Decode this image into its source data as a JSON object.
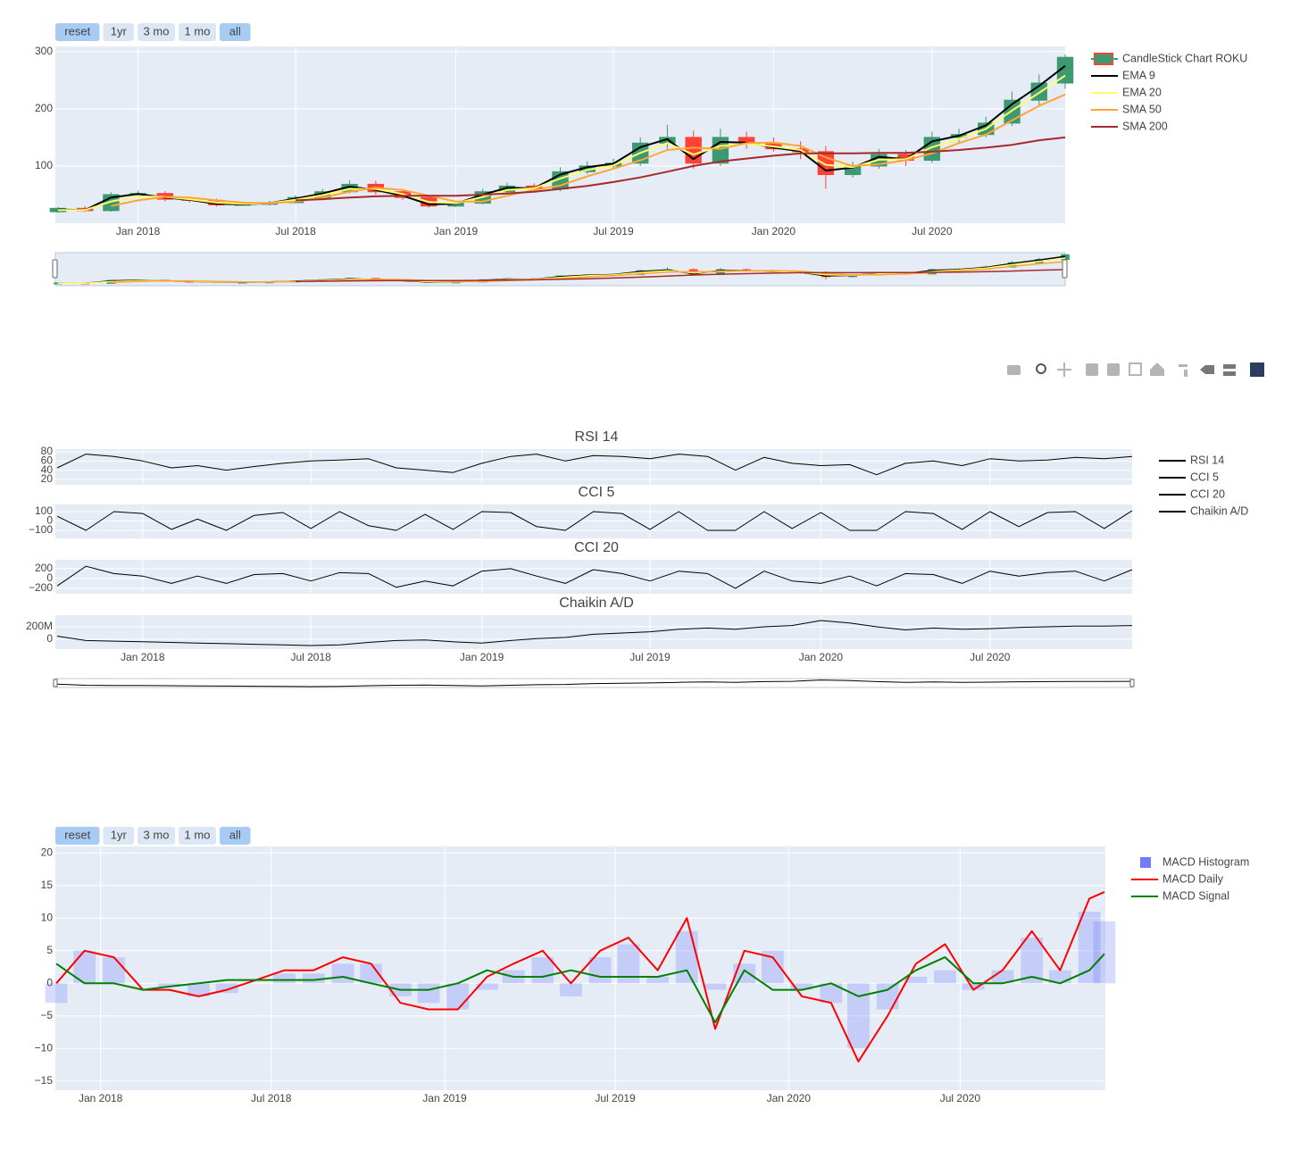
{
  "chart_data": [
    {
      "type": "candlestick",
      "range_buttons": [
        "reset",
        "1yr",
        "3 mo",
        "1 mo",
        "all"
      ],
      "x": [
        "2017-10-01",
        "2017-11-01",
        "2017-12-01",
        "2018-01-01",
        "2018-02-01",
        "2018-03-01",
        "2018-04-01",
        "2018-05-01",
        "2018-06-01",
        "2018-07-01",
        "2018-08-01",
        "2018-09-01",
        "2018-10-01",
        "2018-11-01",
        "2018-12-01",
        "2019-01-01",
        "2019-02-01",
        "2019-03-01",
        "2019-04-01",
        "2019-05-01",
        "2019-06-01",
        "2019-07-01",
        "2019-08-01",
        "2019-09-01",
        "2019-10-01",
        "2019-11-01",
        "2019-12-01",
        "2020-01-01",
        "2020-02-01",
        "2020-03-01",
        "2020-04-01",
        "2020-05-01",
        "2020-06-01",
        "2020-07-01",
        "2020-08-01",
        "2020-09-01",
        "2020-10-01",
        "2020-11-01",
        "2020-12-01"
      ],
      "candles": {
        "name": "CandleStick Chart ROKU",
        "increasing_color": "#3d9970",
        "decreasing_color": "#ff4136",
        "open": [
          20,
          26,
          22,
          50,
          52,
          42,
          40,
          32,
          33,
          36,
          45,
          55,
          68,
          55,
          45,
          30,
          35,
          55,
          65,
          60,
          90,
          100,
          105,
          140,
          150,
          105,
          150,
          140,
          130,
          125,
          85,
          100,
          120,
          110,
          150,
          155,
          175,
          215,
          245
        ],
        "high": [
          28,
          30,
          54,
          57,
          56,
          46,
          43,
          36,
          39,
          49,
          60,
          75,
          74,
          60,
          49,
          38,
          60,
          71,
          70,
          98,
          108,
          113,
          150,
          172,
          162,
          165,
          160,
          150,
          143,
          135,
          108,
          130,
          128,
          160,
          165,
          186,
          230,
          260,
          295
        ],
        "low": [
          18,
          20,
          20,
          46,
          38,
          36,
          29,
          30,
          31,
          34,
          42,
          52,
          50,
          41,
          27,
          28,
          33,
          52,
          55,
          56,
          86,
          95,
          100,
          130,
          95,
          100,
          130,
          125,
          112,
          60,
          80,
          95,
          100,
          105,
          140,
          150,
          170,
          205,
          235
        ],
        "close": [
          26,
          22,
          50,
          52,
          42,
          40,
          32,
          33,
          36,
          45,
          55,
          68,
          55,
          45,
          30,
          35,
          55,
          65,
          60,
          90,
          100,
          105,
          140,
          150,
          105,
          150,
          140,
          130,
          125,
          85,
          100,
          120,
          110,
          150,
          155,
          175,
          215,
          245,
          290
        ]
      },
      "series": [
        {
          "name": "EMA 9",
          "color": "#000000",
          "values": [
            24,
            23,
            45,
            51,
            45,
            41,
            34,
            33,
            35,
            43,
            52,
            64,
            58,
            48,
            33,
            34,
            50,
            62,
            61,
            85,
            98,
            104,
            133,
            147,
            112,
            142,
            141,
            132,
            126,
            92,
            97,
            116,
            112,
            143,
            153,
            171,
            208,
            240,
            275
          ]
        },
        {
          "name": "EMA 20",
          "color": "#ffff66",
          "values": [
            23,
            23,
            38,
            47,
            46,
            42,
            36,
            34,
            35,
            41,
            49,
            60,
            60,
            51,
            37,
            35,
            46,
            58,
            61,
            78,
            93,
            101,
            123,
            140,
            120,
            135,
            139,
            134,
            128,
            102,
            98,
            111,
            112,
            133,
            147,
            165,
            197,
            228,
            258
          ]
        },
        {
          "name": "SMA 50",
          "color": "#ffa537",
          "values": [
            null,
            null,
            30,
            40,
            46,
            45,
            40,
            36,
            35,
            38,
            45,
            55,
            62,
            58,
            48,
            38,
            38,
            48,
            58,
            66,
            82,
            95,
            110,
            128,
            132,
            130,
            140,
            141,
            135,
            115,
            100,
            103,
            110,
            122,
            140,
            155,
            180,
            205,
            225
          ]
        },
        {
          "name": "SMA 200",
          "color": "#a52a2a",
          "values": [
            null,
            null,
            null,
            null,
            null,
            null,
            null,
            null,
            null,
            40,
            42,
            45,
            47,
            48,
            48,
            48,
            50,
            52,
            55,
            60,
            65,
            72,
            80,
            90,
            100,
            108,
            113,
            118,
            122,
            122,
            122,
            123,
            123,
            125,
            128,
            132,
            137,
            145,
            150
          ]
        }
      ],
      "xlim": [
        "2017-09-28",
        "2020-12-01"
      ],
      "xticks": [
        {
          "value": "2018-01-01",
          "label": "Jan 2018"
        },
        {
          "value": "2018-07-01",
          "label": "Jul 2018"
        },
        {
          "value": "2019-01-01",
          "label": "Jan 2019"
        },
        {
          "value": "2019-07-01",
          "label": "Jul 2019"
        },
        {
          "value": "2020-01-01",
          "label": "Jan 2020"
        },
        {
          "value": "2020-07-01",
          "label": "Jul 2020"
        }
      ],
      "ylim": [
        0,
        309
      ],
      "yticks": [
        100,
        200,
        300
      ],
      "grid": true,
      "rangeslider": true
    },
    {
      "type": "subplots",
      "x": [
        "2017-10-01",
        "2017-11-01",
        "2017-12-01",
        "2018-01-01",
        "2018-02-01",
        "2018-03-01",
        "2018-04-01",
        "2018-05-01",
        "2018-06-01",
        "2018-07-01",
        "2018-08-01",
        "2018-09-01",
        "2018-10-01",
        "2018-11-01",
        "2018-12-01",
        "2019-01-01",
        "2019-02-01",
        "2019-03-01",
        "2019-04-01",
        "2019-05-01",
        "2019-06-01",
        "2019-07-01",
        "2019-08-01",
        "2019-09-01",
        "2019-10-01",
        "2019-11-01",
        "2019-12-01",
        "2020-01-01",
        "2020-02-01",
        "2020-03-01",
        "2020-04-01",
        "2020-05-01",
        "2020-06-01",
        "2020-07-01",
        "2020-08-01",
        "2020-09-01",
        "2020-10-01",
        "2020-11-01",
        "2020-12-01"
      ],
      "xlim": [
        "2017-09-29",
        "2020-12-01"
      ],
      "xticks": [
        {
          "value": "2018-01-01",
          "label": "Jan 2018"
        },
        {
          "value": "2018-07-01",
          "label": "Jul 2018"
        },
        {
          "value": "2019-01-01",
          "label": "Jan 2019"
        },
        {
          "value": "2019-07-01",
          "label": "Jul 2019"
        },
        {
          "value": "2020-01-01",
          "label": "Jan 2020"
        },
        {
          "value": "2020-07-01",
          "label": "Jul 2020"
        }
      ],
      "grid": true,
      "rangeslider": true,
      "panels": [
        {
          "title": "RSI 14",
          "ylim": [
            8,
            86
          ],
          "yticks": [
            20,
            40,
            60,
            80
          ],
          "series": [
            {
              "name": "RSI 14",
              "color": "#000000",
              "values": [
                45,
                75,
                70,
                60,
                45,
                50,
                40,
                48,
                55,
                60,
                62,
                65,
                45,
                40,
                35,
                55,
                70,
                75,
                60,
                72,
                70,
                65,
                75,
                70,
                40,
                68,
                55,
                50,
                52,
                30,
                55,
                60,
                50,
                65,
                60,
                62,
                68,
                65,
                70
              ]
            }
          ]
        },
        {
          "title": "CCI 5",
          "ylim": [
            -186,
            176
          ],
          "yticks": [
            {
              "value": -100,
              "label": "−100"
            },
            0,
            100
          ],
          "series": [
            {
              "name": "CCI 5",
              "color": "#000000",
              "values": [
                50,
                -100,
                100,
                80,
                -90,
                20,
                -100,
                60,
                90,
                -80,
                100,
                -50,
                -100,
                70,
                -90,
                100,
                90,
                -60,
                -100,
                100,
                80,
                -90,
                100,
                -100,
                -100,
                100,
                -80,
                90,
                -100,
                -100,
                100,
                80,
                -90,
                100,
                -60,
                90,
                100,
                -80,
                110
              ]
            }
          ]
        },
        {
          "title": "CCI 20",
          "ylim": [
            -310,
            380
          ],
          "yticks": [
            {
              "value": -200,
              "label": "−200"
            },
            0,
            200
          ],
          "series": [
            {
              "name": "CCI 20",
              "color": "#000000",
              "values": [
                -150,
                250,
                100,
                50,
                -100,
                50,
                -100,
                80,
                100,
                -50,
                120,
                100,
                -180,
                -50,
                -150,
                150,
                200,
                50,
                -100,
                180,
                100,
                -50,
                150,
                100,
                -200,
                150,
                -50,
                -100,
                50,
                -150,
                100,
                80,
                -100,
                150,
                50,
                120,
                150,
                -50,
                180
              ]
            }
          ]
        },
        {
          "title": "Chaikin A/D",
          "ylim": [
            -157000000,
            386000000
          ],
          "yticks": [
            0,
            {
              "value": 200000000,
              "label": "200M"
            }
          ],
          "series": [
            {
              "name": "Chaikin A/D",
              "color": "#000000",
              "values": [
                50000000,
                -20000000,
                -30000000,
                -40000000,
                -50000000,
                -60000000,
                -70000000,
                -80000000,
                -90000000,
                -100000000,
                -90000000,
                -50000000,
                -20000000,
                -10000000,
                -40000000,
                -60000000,
                -20000000,
                10000000,
                30000000,
                80000000,
                100000000,
                120000000,
                160000000,
                180000000,
                160000000,
                200000000,
                220000000,
                300000000,
                260000000,
                200000000,
                150000000,
                180000000,
                160000000,
                170000000,
                190000000,
                200000000,
                210000000,
                210000000,
                220000000
              ]
            }
          ]
        }
      ]
    },
    {
      "type": "combo",
      "range_buttons": [
        "reset",
        "1yr",
        "3 mo",
        "1 mo",
        "all"
      ],
      "x": [
        "2017-11-15",
        "2017-12-15",
        "2018-01-15",
        "2018-02-15",
        "2018-03-15",
        "2018-04-15",
        "2018-05-15",
        "2018-06-15",
        "2018-07-15",
        "2018-08-15",
        "2018-09-15",
        "2018-10-15",
        "2018-11-15",
        "2018-12-15",
        "2019-01-15",
        "2019-02-15",
        "2019-03-15",
        "2019-04-15",
        "2019-05-15",
        "2019-06-15",
        "2019-07-15",
        "2019-08-15",
        "2019-09-15",
        "2019-10-15",
        "2019-11-15",
        "2019-12-15",
        "2020-01-15",
        "2020-02-15",
        "2020-03-15",
        "2020-04-15",
        "2020-05-15",
        "2020-06-15",
        "2020-07-15",
        "2020-08-15",
        "2020-09-15",
        "2020-10-15",
        "2020-11-15",
        "2020-12-01"
      ],
      "series": [
        {
          "name": "MACD Histogram",
          "kind": "bar",
          "color": "#636efa",
          "values": [
            -3,
            5,
            4,
            0,
            -0.5,
            -2,
            -1.5,
            0,
            1.5,
            1.5,
            3,
            3,
            -2,
            -3,
            -4,
            -1,
            2,
            4,
            -2,
            4,
            6,
            1,
            8,
            -1,
            3,
            5,
            -1,
            -3,
            -10,
            -4,
            1,
            2,
            -1,
            2,
            7,
            2,
            11,
            9.5
          ]
        },
        {
          "name": "MACD Daily",
          "kind": "line",
          "color": "#ff0000",
          "values": [
            0,
            5,
            4,
            -1,
            -1,
            -2,
            -1,
            0.5,
            2,
            2,
            4,
            3,
            -3,
            -4,
            -4,
            1,
            3,
            5,
            0,
            5,
            7,
            2,
            10,
            -7,
            5,
            4,
            -2,
            -3,
            -12,
            -5,
            3,
            6,
            -1,
            2,
            8,
            2,
            13,
            14
          ]
        },
        {
          "name": "MACD Signal",
          "kind": "line",
          "color": "#008000",
          "values": [
            3,
            0,
            0,
            -1,
            -0.5,
            0,
            0.5,
            0.5,
            0.5,
            0.5,
            1,
            0,
            -1,
            -1,
            0,
            2,
            1,
            1,
            2,
            1,
            1,
            1,
            2,
            -6,
            2,
            -1,
            -1,
            0,
            -2,
            -1,
            2,
            4,
            0,
            0,
            1,
            0,
            2,
            4.5
          ]
        }
      ],
      "xlim": [
        "2017-11-14",
        "2020-12-02"
      ],
      "xticks": [
        {
          "value": "2018-01-01",
          "label": "Jan 2018"
        },
        {
          "value": "2018-07-01",
          "label": "Jul 2018"
        },
        {
          "value": "2019-01-01",
          "label": "Jan 2019"
        },
        {
          "value": "2019-07-01",
          "label": "Jul 2019"
        },
        {
          "value": "2020-01-01",
          "label": "Jan 2020"
        },
        {
          "value": "2020-07-01",
          "label": "Jul 2020"
        }
      ],
      "ylim": [
        -16.4,
        21
      ],
      "yticks": [
        {
          "value": -15,
          "label": "−15"
        },
        {
          "value": -10,
          "label": "−10"
        },
        {
          "value": -5,
          "label": "−5"
        },
        0,
        5,
        10,
        15,
        20
      ],
      "grid": true
    }
  ]
}
